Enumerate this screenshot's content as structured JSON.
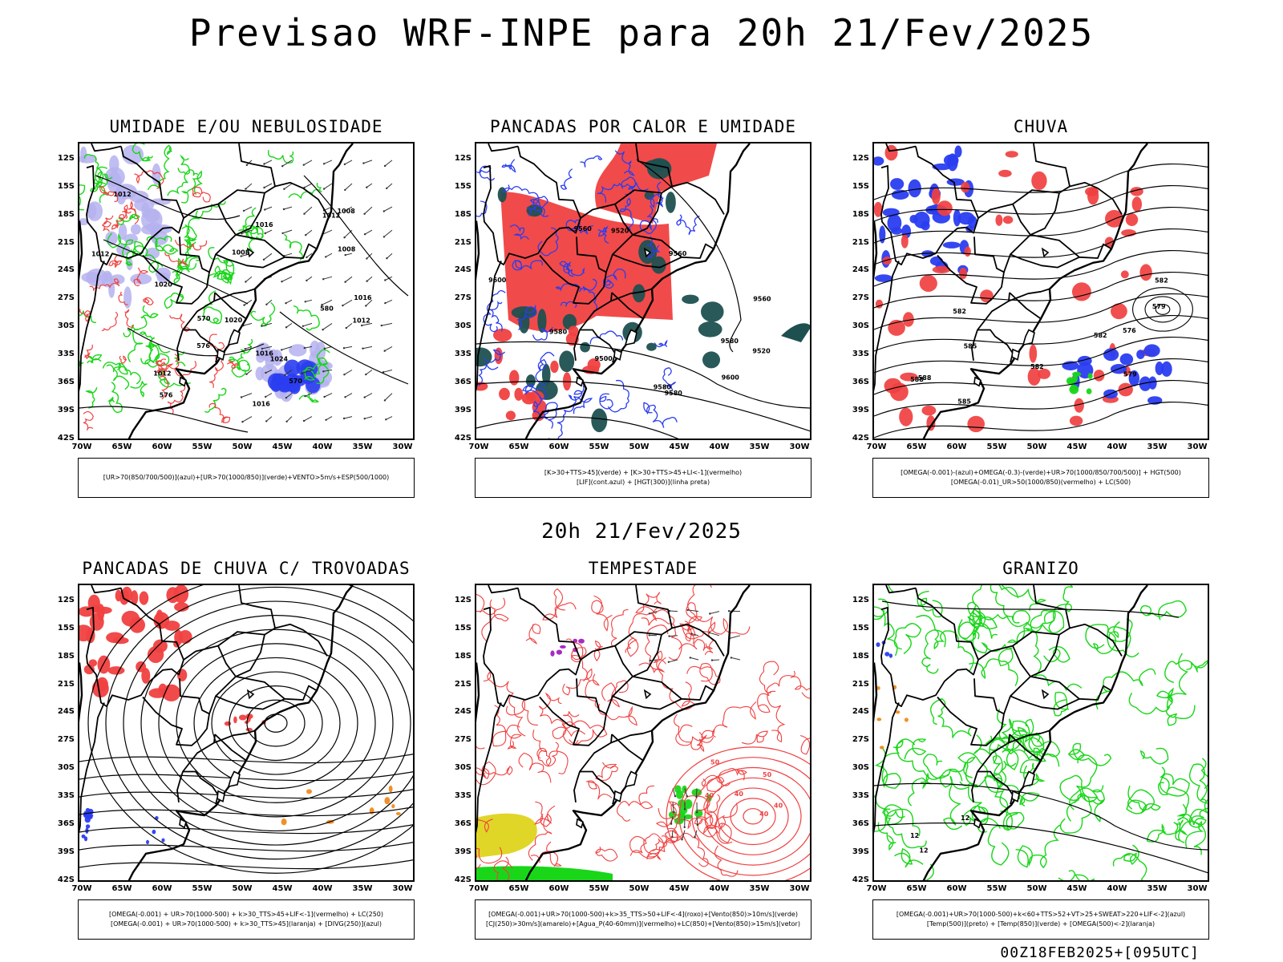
{
  "title": "Previsao WRF-INPE  para 20h 21/Fev/2025",
  "subtitle": "20h 21/Fev/2025",
  "footer": "00Z18FEB2025+[095UTC]",
  "axes": {
    "lat_labels": [
      "12S",
      "15S",
      "18S",
      "21S",
      "24S",
      "27S",
      "30S",
      "33S",
      "36S",
      "39S",
      "42S"
    ],
    "lon_labels": [
      "70W",
      "65W",
      "60W",
      "55W",
      "50W",
      "45W",
      "40W",
      "35W",
      "30W"
    ]
  },
  "colors": {
    "red": "#f04040",
    "green": "#19d619",
    "blue": "#2a3df0",
    "lavender": "#b4b2ee",
    "darkteal": "#1f5050",
    "yellow": "#e0d628",
    "orange": "#f08a1e",
    "purple": "#a020c0"
  },
  "panels": [
    {
      "title": "UMIDADE E/OU NEBULOSIDADE",
      "legend": [
        "[UR>70(850/700/500)](azul)+[UR>70(1000/850)](verde)+VENTO>5m/s+ESP(500/1000)"
      ],
      "contour_labels": [
        "1012",
        "1016",
        "1016",
        "1012",
        "1012",
        "1008",
        "1012",
        "1016",
        "1012",
        "1008",
        "1008",
        "1016",
        "1020",
        "1024",
        "1020",
        "576",
        "570",
        "576",
        "570",
        "580"
      ]
    },
    {
      "title": "PANCADAS POR CALOR E UMIDADE",
      "legend": [
        "[K>30+TTS>45](verde) + [K>30+TTS>45+LI<-1](vermelho)",
        "[LIF](cont.azul) + [HGT(300)](linha preta)"
      ],
      "contour_labels": [
        "9600",
        "9580",
        "9580",
        "9580",
        "9560",
        "9560",
        "9580",
        "9500",
        "9520",
        "9520",
        "9600",
        "9560"
      ]
    },
    {
      "title": "CHUVA",
      "legend": [
        "[OMEGA(-0.001)-(azul)+OMEGA(-0.3)-(verde)+UR>70(1000/850/700/500)] + HGT(500)",
        "[OMEGA(-0.01)_UR>50(1000/850)(vermelho) + LC(500)"
      ],
      "contour_labels": [
        "588",
        "585",
        "585",
        "582",
        "582",
        "579",
        "579",
        "582",
        "582",
        "576",
        "588"
      ]
    },
    {
      "title": "PANCADAS DE CHUVA C/ TROVOADAS",
      "legend": [
        "[OMEGA(-0.001) + UR>70(1000-500) + k>30_TTS>45+LIF<-1](vermelho) + LC(250)",
        "[OMEGA(-0.001) + UR>70(1000-500) + k>30_TTS>45](laranja) + [DIVG(250)](azul)"
      ],
      "contour_labels": []
    },
    {
      "title": "TEMPESTADE",
      "legend": [
        "[OMEGA(-0.001)+UR>70(1000-500)+k>35_TTS>50+LIF<-4](roxo)+[Vento(850)>10m/s](verde)",
        "[CJ(250)>30m/s](amarelo)+[Agua_P(40-60mm)](vermelho)+LC(850)+[Vento(850)>15m/s](vetor)"
      ],
      "contour_labels": [
        "40",
        "50",
        "40",
        "40",
        "50",
        "40"
      ]
    },
    {
      "title": "GRANIZO",
      "legend": [
        "[OMEGA(-0.001)+UR>70(1000-500)+k<60+TTS>52+VT>25+SWEAT>220+LIF<-2](azul)",
        "[Temp(500)](preto) + [Temp(850)](verde) + [OMEGA(500)<-2](laranja)"
      ],
      "contour_labels": [
        "12",
        "12",
        "12"
      ]
    }
  ]
}
